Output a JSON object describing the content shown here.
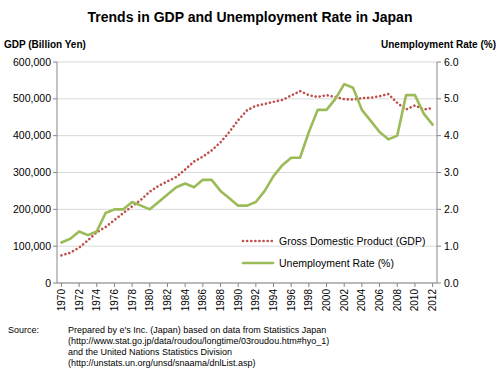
{
  "chart_data": {
    "type": "line",
    "title": "Trends in GDP and Unemployment Rate in Japan",
    "y_label": "GDP (Billion Yen)",
    "y2_label": "Unemployment Rate (%)",
    "categories": [
      "1970",
      null,
      "1972",
      null,
      "1974",
      null,
      "1976",
      null,
      "1978",
      null,
      "1980",
      null,
      "1982",
      null,
      "1984",
      null,
      "1986",
      null,
      "1988",
      null,
      "1990",
      null,
      "1992",
      null,
      "1994",
      null,
      "1996",
      null,
      "1998",
      null,
      "2000",
      null,
      "2002",
      null,
      "2004",
      null,
      "2006",
      null,
      "2008",
      null,
      "2010",
      null,
      "2012"
    ],
    "series": [
      {
        "name": "Gross Domestic Product (GDP)",
        "color": "#c0504d",
        "line_style": "dotted",
        "values": [
          75000,
          82000,
          96000,
          116000,
          138000,
          152000,
          171000,
          190000,
          208000,
          226000,
          248000,
          264000,
          276000,
          288000,
          308000,
          330000,
          343000,
          360000,
          382000,
          410000,
          442000,
          469000,
          481000,
          486000,
          492000,
          497000,
          509000,
          521000,
          510000,
          505000,
          510000,
          505000,
          499000,
          498000,
          502000,
          503000,
          507000,
          513000,
          489000,
          471000,
          482000,
          471000,
          475000
        ]
      },
      {
        "name": "Unemployment Rate (%)",
        "color": "#9bbb59",
        "line_style": "solid",
        "axis": "y2",
        "values": [
          1.1,
          1.2,
          1.4,
          1.3,
          1.4,
          1.9,
          2.0,
          2.0,
          2.2,
          2.1,
          2.0,
          2.2,
          2.4,
          2.6,
          2.7,
          2.6,
          2.8,
          2.8,
          2.5,
          2.3,
          2.1,
          2.1,
          2.2,
          2.5,
          2.9,
          3.2,
          3.4,
          3.4,
          4.1,
          4.7,
          4.7,
          5.0,
          5.4,
          5.3,
          4.7,
          4.4,
          4.1,
          3.9,
          4.0,
          5.1,
          5.1,
          4.6,
          4.3
        ]
      }
    ],
    "ylim": [
      0,
      600000
    ],
    "yticks": [
      0,
      {
        "value": 100000,
        "label": "100,000"
      },
      {
        "value": 200000,
        "label": "200,000"
      },
      {
        "value": 300000,
        "label": "300,000"
      },
      {
        "value": 400000,
        "label": "400,000"
      },
      {
        "value": 500000,
        "label": "500,000"
      },
      {
        "value": 600000,
        "label": "600,000"
      }
    ],
    "y2lim": [
      0,
      6
    ],
    "y2ticks": [
      {
        "value": 0,
        "label": "0.0"
      },
      {
        "value": 1,
        "label": "1.0"
      },
      {
        "value": 2,
        "label": "2.0"
      },
      {
        "value": 3,
        "label": "3.0"
      },
      {
        "value": 4,
        "label": "4.0"
      },
      {
        "value": 5,
        "label": "5.0"
      },
      {
        "value": 6,
        "label": "6.0"
      }
    ],
    "grid": true,
    "legend": "lower right",
    "source": {
      "label": "Source:",
      "lines": [
        "Prepared by e's Inc. (Japan) based on data from Statistics Japan",
        "(http://www.stat.go.jp/data/roudou/longtime/03roudou.htm#hyo_1)",
        "and the United Nations Statistics Division",
        "(http://unstats.un.org/unsd/snaama/dnlList.asp)"
      ]
    }
  }
}
